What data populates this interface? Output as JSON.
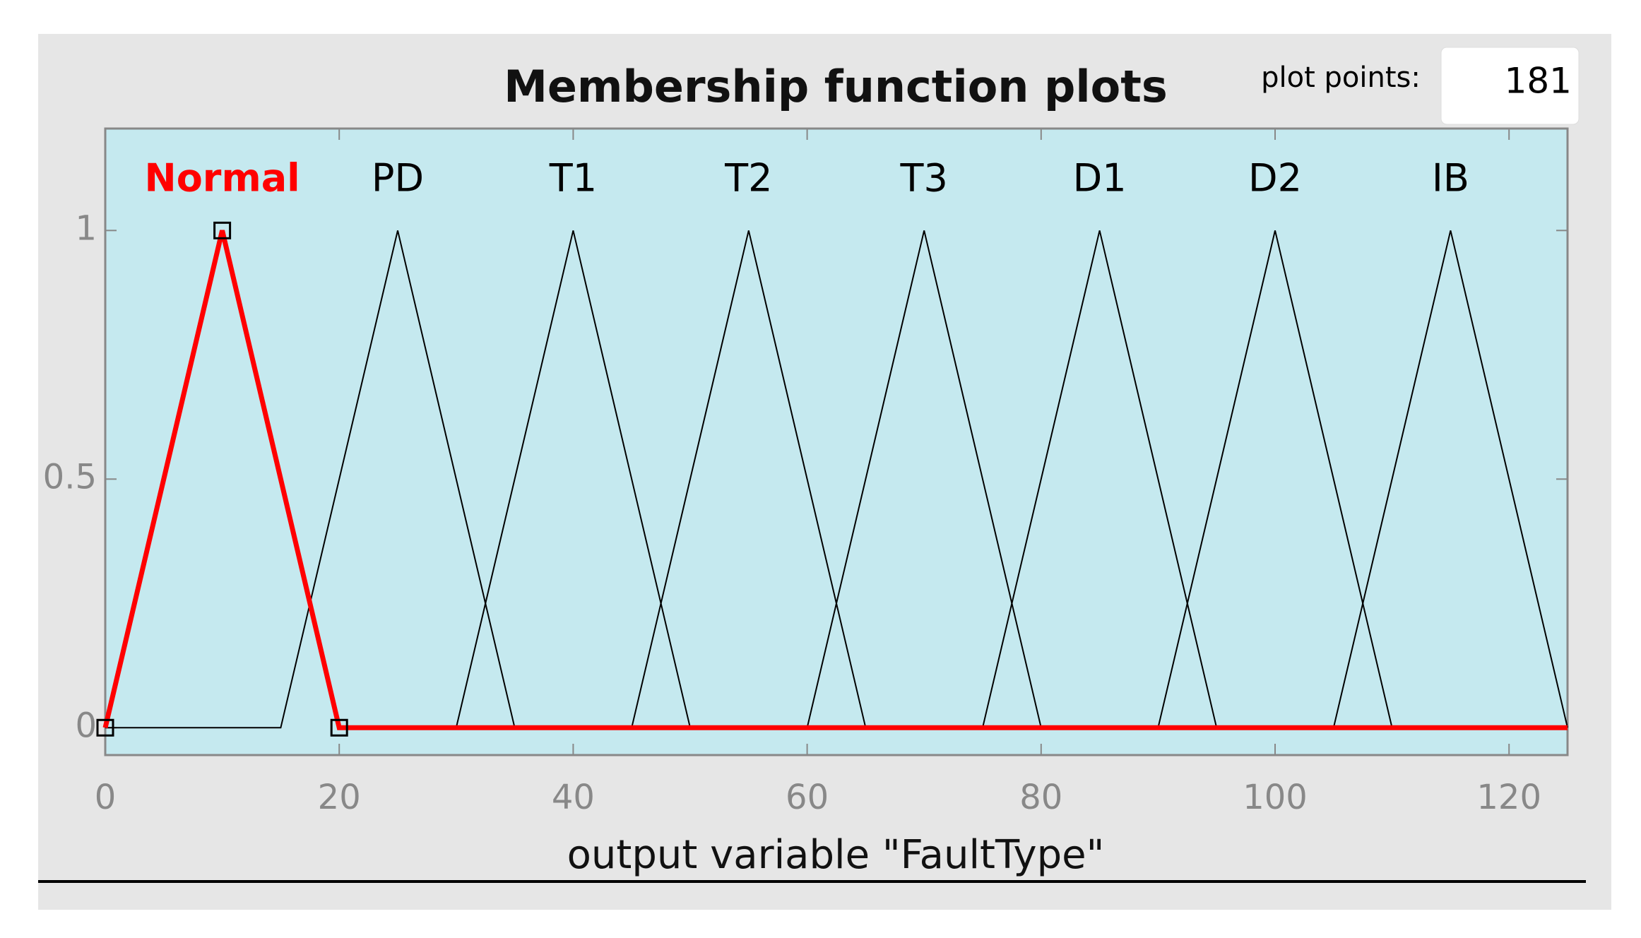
{
  "chart_data": {
    "type": "line",
    "title": "Membership function plots",
    "xlabel": "output variable \"FaultType\"",
    "xlim": [
      0,
      125
    ],
    "ylim": [
      -0.055,
      1.205
    ],
    "xticks": [
      0,
      20,
      40,
      60,
      80,
      100,
      120
    ],
    "yticks": [
      0,
      0.5,
      1
    ],
    "series": [
      {
        "name": "Normal",
        "color": "#ff0000",
        "selected": true,
        "x": [
          0,
          10,
          20,
          125
        ],
        "values": [
          0,
          1,
          0,
          0
        ]
      },
      {
        "name": "PD",
        "color": "#000000",
        "x": [
          0,
          15,
          25,
          35
        ],
        "values": [
          0,
          0,
          1,
          0
        ]
      },
      {
        "name": "T1",
        "color": "#000000",
        "x": [
          30,
          40,
          50
        ],
        "values": [
          0,
          1,
          0
        ]
      },
      {
        "name": "T2",
        "color": "#000000",
        "x": [
          45,
          55,
          65
        ],
        "values": [
          0,
          1,
          0
        ]
      },
      {
        "name": "T3",
        "color": "#000000",
        "x": [
          60,
          70,
          80
        ],
        "values": [
          0,
          1,
          0
        ]
      },
      {
        "name": "D1",
        "color": "#000000",
        "x": [
          75,
          85,
          95
        ],
        "values": [
          0,
          1,
          0
        ]
      },
      {
        "name": "D2",
        "color": "#000000",
        "x": [
          90,
          100,
          110
        ],
        "values": [
          0,
          1,
          0
        ]
      },
      {
        "name": "IB",
        "color": "#000000",
        "x": [
          105,
          115,
          125
        ],
        "values": [
          0,
          1,
          0
        ]
      }
    ]
  },
  "controls": {
    "plot_points_label": "plot points:",
    "plot_points": 181
  }
}
